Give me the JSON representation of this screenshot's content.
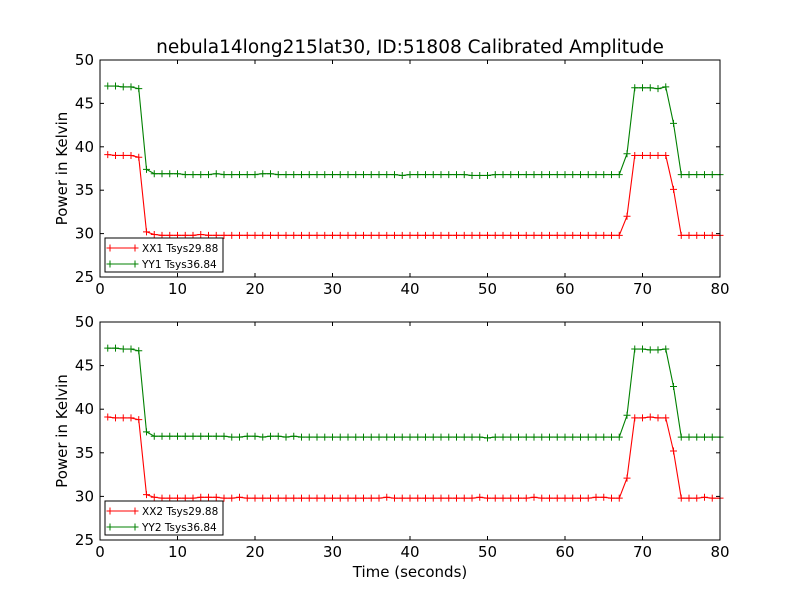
{
  "figure": {
    "title": "nebula14long215lat30, ID:51808 Calibrated Amplitude"
  },
  "chart_data": [
    {
      "type": "line",
      "title": "nebula14long215lat30, ID:51808 Calibrated Amplitude",
      "xlabel": "",
      "ylabel": "Power in Kelvin",
      "xlim": [
        0,
        80
      ],
      "ylim": [
        25,
        50
      ],
      "xticks": [
        0,
        10,
        20,
        30,
        40,
        50,
        60,
        70,
        80
      ],
      "yticks": [
        25,
        30,
        35,
        40,
        45,
        50
      ],
      "grid": false,
      "legend_position": "lower-left",
      "x": [
        1,
        2,
        3,
        4,
        5,
        6,
        7,
        8,
        9,
        10,
        11,
        12,
        13,
        14,
        15,
        16,
        17,
        18,
        19,
        20,
        21,
        22,
        23,
        24,
        25,
        26,
        27,
        28,
        29,
        30,
        31,
        32,
        33,
        34,
        35,
        36,
        37,
        38,
        39,
        40,
        41,
        42,
        43,
        44,
        45,
        46,
        47,
        48,
        49,
        50,
        51,
        52,
        53,
        54,
        55,
        56,
        57,
        58,
        59,
        60,
        61,
        62,
        63,
        64,
        65,
        66,
        67,
        68,
        69,
        70,
        71,
        72,
        73,
        74,
        75,
        76,
        77,
        78,
        79,
        80
      ],
      "series": [
        {
          "name": "XX1 Tsys29.88",
          "color": "#ff0000",
          "values": [
            39.1,
            39.0,
            39.0,
            39.0,
            38.8,
            30.2,
            29.9,
            29.8,
            29.8,
            29.8,
            29.8,
            29.8,
            29.9,
            29.8,
            29.8,
            29.8,
            29.8,
            29.8,
            29.8,
            29.8,
            29.8,
            29.8,
            29.8,
            29.8,
            29.8,
            29.8,
            29.8,
            29.8,
            29.8,
            29.8,
            29.8,
            29.8,
            29.8,
            29.8,
            29.8,
            29.8,
            29.8,
            29.8,
            29.8,
            29.8,
            29.8,
            29.8,
            29.8,
            29.8,
            29.8,
            29.8,
            29.8,
            29.8,
            29.8,
            29.8,
            29.8,
            29.8,
            29.8,
            29.8,
            29.8,
            29.8,
            29.8,
            29.8,
            29.8,
            29.8,
            29.8,
            29.8,
            29.8,
            29.8,
            29.8,
            29.8,
            29.8,
            32.0,
            39.0,
            39.0,
            39.0,
            39.0,
            39.0,
            35.1,
            29.8,
            29.8,
            29.8,
            29.8,
            29.8,
            29.8
          ]
        },
        {
          "name": "YY1 Tsys36.84",
          "color": "#008000",
          "values": [
            47.0,
            47.0,
            46.9,
            46.9,
            46.7,
            37.4,
            36.9,
            36.9,
            36.9,
            36.9,
            36.8,
            36.8,
            36.8,
            36.8,
            36.9,
            36.8,
            36.8,
            36.8,
            36.8,
            36.8,
            36.9,
            36.9,
            36.8,
            36.8,
            36.8,
            36.8,
            36.8,
            36.8,
            36.8,
            36.8,
            36.8,
            36.8,
            36.8,
            36.8,
            36.8,
            36.8,
            36.8,
            36.8,
            36.7,
            36.8,
            36.8,
            36.8,
            36.8,
            36.8,
            36.8,
            36.8,
            36.8,
            36.7,
            36.7,
            36.7,
            36.8,
            36.8,
            36.8,
            36.8,
            36.8,
            36.8,
            36.8,
            36.8,
            36.8,
            36.8,
            36.8,
            36.8,
            36.8,
            36.8,
            36.8,
            36.8,
            36.8,
            39.2,
            46.8,
            46.8,
            46.8,
            46.7,
            46.9,
            42.7,
            36.8,
            36.8,
            36.8,
            36.8,
            36.8,
            36.8
          ]
        }
      ]
    },
    {
      "type": "line",
      "title": "",
      "xlabel": "Time (seconds)",
      "ylabel": "Power in Kelvin",
      "xlim": [
        0,
        80
      ],
      "ylim": [
        25,
        50
      ],
      "xticks": [
        0,
        10,
        20,
        30,
        40,
        50,
        60,
        70,
        80
      ],
      "yticks": [
        25,
        30,
        35,
        40,
        45,
        50
      ],
      "grid": false,
      "legend_position": "lower-left",
      "x": [
        1,
        2,
        3,
        4,
        5,
        6,
        7,
        8,
        9,
        10,
        11,
        12,
        13,
        14,
        15,
        16,
        17,
        18,
        19,
        20,
        21,
        22,
        23,
        24,
        25,
        26,
        27,
        28,
        29,
        30,
        31,
        32,
        33,
        34,
        35,
        36,
        37,
        38,
        39,
        40,
        41,
        42,
        43,
        44,
        45,
        46,
        47,
        48,
        49,
        50,
        51,
        52,
        53,
        54,
        55,
        56,
        57,
        58,
        59,
        60,
        61,
        62,
        63,
        64,
        65,
        66,
        67,
        68,
        69,
        70,
        71,
        72,
        73,
        74,
        75,
        76,
        77,
        78,
        79,
        80
      ],
      "series": [
        {
          "name": "XX2 Tsys29.88",
          "color": "#ff0000",
          "values": [
            39.1,
            39.0,
            39.0,
            39.0,
            38.8,
            30.2,
            29.9,
            29.8,
            29.8,
            29.8,
            29.8,
            29.8,
            29.9,
            29.9,
            29.9,
            29.8,
            29.8,
            29.9,
            29.8,
            29.8,
            29.8,
            29.8,
            29.8,
            29.8,
            29.8,
            29.8,
            29.8,
            29.8,
            29.8,
            29.8,
            29.8,
            29.8,
            29.8,
            29.8,
            29.8,
            29.8,
            29.9,
            29.8,
            29.8,
            29.8,
            29.8,
            29.8,
            29.8,
            29.8,
            29.8,
            29.8,
            29.8,
            29.8,
            29.9,
            29.8,
            29.8,
            29.8,
            29.8,
            29.8,
            29.8,
            29.9,
            29.8,
            29.8,
            29.8,
            29.8,
            29.8,
            29.8,
            29.8,
            29.9,
            29.9,
            29.8,
            29.8,
            32.1,
            39.0,
            39.0,
            39.1,
            39.0,
            39.0,
            35.2,
            29.8,
            29.8,
            29.8,
            29.9,
            29.8,
            29.8
          ]
        },
        {
          "name": "YY2 Tsys36.84",
          "color": "#008000",
          "values": [
            47.0,
            47.0,
            46.9,
            46.9,
            46.7,
            37.4,
            36.9,
            36.9,
            36.9,
            36.9,
            36.9,
            36.9,
            36.9,
            36.9,
            36.9,
            36.9,
            36.8,
            36.8,
            36.9,
            36.9,
            36.8,
            36.9,
            36.9,
            36.8,
            36.9,
            36.8,
            36.8,
            36.8,
            36.8,
            36.8,
            36.8,
            36.8,
            36.8,
            36.8,
            36.8,
            36.8,
            36.8,
            36.8,
            36.8,
            36.8,
            36.8,
            36.8,
            36.8,
            36.8,
            36.8,
            36.8,
            36.8,
            36.8,
            36.8,
            36.7,
            36.8,
            36.8,
            36.8,
            36.8,
            36.8,
            36.8,
            36.8,
            36.8,
            36.8,
            36.8,
            36.8,
            36.8,
            36.8,
            36.8,
            36.8,
            36.8,
            36.8,
            39.3,
            46.9,
            46.9,
            46.8,
            46.8,
            46.9,
            42.6,
            36.8,
            36.8,
            36.8,
            36.8,
            36.8,
            36.8
          ]
        }
      ]
    }
  ]
}
